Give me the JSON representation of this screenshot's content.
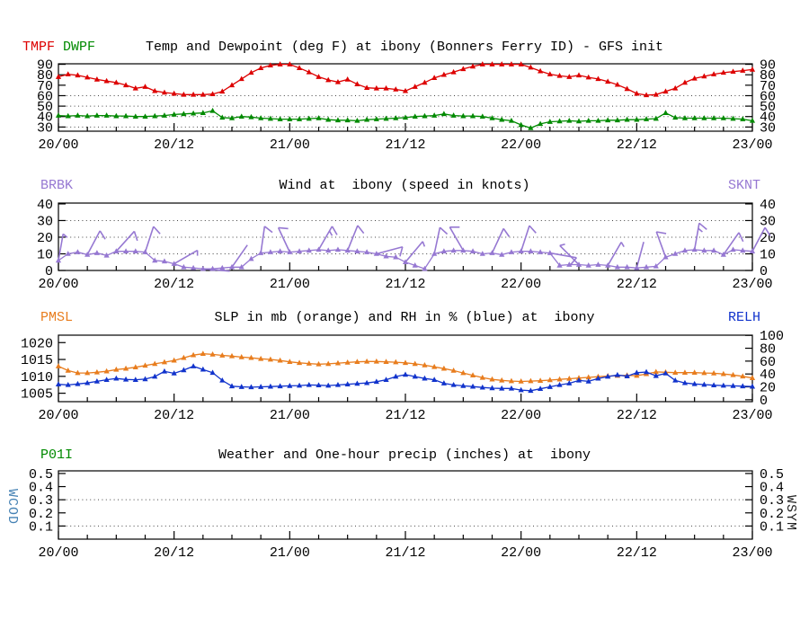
{
  "side_labels": {
    "left": {
      "text": "WCOD",
      "color": "#4682b4"
    },
    "right": {
      "text": "WSYM",
      "color": "#222222"
    }
  },
  "x_axis": {
    "tick_labels": [
      "20/00",
      "20/12",
      "21/00",
      "21/12",
      "22/00",
      "22/12",
      "23/00"
    ],
    "tick_hours": [
      0,
      12,
      24,
      36,
      48,
      60,
      72
    ],
    "minor_tick_every_h": 3,
    "x_range_hours": [
      0,
      72
    ],
    "x_step_hours": 1
  },
  "chart_data": [
    {
      "type": "line",
      "title": "Temp and Dewpoint (deg F) at ibony (Bonners Ferry ID) - GFS init",
      "left_params": [
        {
          "label": "TMPF",
          "color": "#dd0000"
        },
        {
          "label": "DWPF",
          "color": "#008a00"
        }
      ],
      "right_params": [],
      "ylim": [
        26,
        90.5
      ],
      "yticks_left": [
        90,
        80,
        70,
        60,
        50,
        40,
        30
      ],
      "yticks_right": [
        90,
        80,
        70,
        60,
        50,
        40,
        30
      ],
      "grid_values": [
        60,
        50,
        40,
        30
      ],
      "series": [
        {
          "name": "TMPF",
          "color": "#dd0000",
          "values": [
            78,
            80.5,
            79.5,
            77.5,
            75.5,
            74,
            72.5,
            70,
            67,
            68.5,
            64.5,
            63,
            62,
            61,
            61,
            61,
            61.5,
            64,
            70,
            76,
            82,
            86.5,
            89,
            90,
            90,
            86.5,
            82.5,
            78,
            75,
            73,
            75.5,
            71,
            67.5,
            67,
            67,
            66,
            64.5,
            68.5,
            72.5,
            77,
            80,
            82.5,
            85.5,
            88,
            90,
            90,
            90,
            90,
            90,
            87,
            83.5,
            80.5,
            79,
            78,
            79.5,
            77.5,
            76,
            73.5,
            70.5,
            66.5,
            62,
            60.5,
            61,
            64,
            67,
            72.5,
            76.5,
            78.5,
            80.5,
            82,
            83,
            84,
            85
          ]
        },
        {
          "name": "DWPF",
          "color": "#008a00",
          "values": [
            41,
            40.5,
            41,
            40.5,
            41,
            41,
            40.5,
            40.5,
            40,
            40,
            40.5,
            41,
            42,
            42.5,
            43,
            43.5,
            45.5,
            39,
            38.5,
            40,
            39.5,
            38.5,
            38,
            37.5,
            37.5,
            37.5,
            38,
            38.5,
            37,
            36.5,
            36.5,
            36,
            37,
            37.5,
            38,
            38.5,
            39,
            40,
            40.5,
            41,
            42.5,
            41,
            40.5,
            40.5,
            40,
            38.5,
            37,
            36,
            32,
            29,
            33,
            35,
            35.5,
            36,
            35.5,
            36,
            36,
            36.5,
            36.5,
            37,
            37,
            37.5,
            38,
            43.5,
            39,
            38.5,
            38.5,
            38.5,
            38.5,
            38.5,
            38,
            37.5,
            36
          ]
        }
      ]
    },
    {
      "type": "line",
      "title": "Wind at  ibony (speed in knots)",
      "left_params": [
        {
          "label": "BRBK",
          "color": "#9678d2"
        }
      ],
      "right_params": [
        {
          "label": "SKNT",
          "color": "#9678d2"
        }
      ],
      "ylim": [
        0,
        40.5
      ],
      "yticks_left": [
        40,
        30,
        20,
        10,
        0
      ],
      "yticks_right": [
        40,
        30,
        20,
        10,
        0
      ],
      "grid_values": [
        30,
        20,
        10
      ],
      "barb_interval_h": 3,
      "barb_angles_deg": [
        10,
        28,
        42,
        18,
        60,
        95,
        35,
        8,
        -25,
        30,
        22,
        75,
        40,
        12,
        -30,
        25,
        18,
        100,
        -45,
        30,
        15,
        -20,
        10,
        35,
        28
      ],
      "series": [
        {
          "name": "SKNT",
          "color": "#9678d2",
          "values": [
            6,
            10,
            11,
            9.5,
            10.5,
            9,
            11.5,
            11.5,
            11.5,
            11,
            6,
            5.5,
            4,
            2,
            1.5,
            1,
            1,
            1.5,
            2,
            2,
            7,
            10.5,
            11,
            11.5,
            11,
            11.5,
            12,
            12.5,
            12,
            12.5,
            12,
            11.5,
            11,
            10,
            8.5,
            8,
            5,
            3,
            1,
            10,
            11.5,
            12,
            12,
            11.5,
            10,
            10.5,
            9.5,
            11,
            11.5,
            11.5,
            11,
            10.5,
            3,
            3.5,
            3.5,
            3,
            3.5,
            3,
            2,
            2,
            1.5,
            2,
            2.5,
            8,
            10,
            12,
            12.5,
            12,
            12,
            9.5,
            12.5,
            12,
            11.5
          ]
        }
      ]
    },
    {
      "type": "line",
      "title": "SLP in mb (orange) and RH in % (blue) at  ibony",
      "left_params": [
        {
          "label": "PMSL",
          "color": "#e87d1e"
        }
      ],
      "right_params": [
        {
          "label": "RELH",
          "color": "#1133cc"
        }
      ],
      "ylim_left": [
        1002.5,
        1022.2
      ],
      "yticks_left": [
        1020,
        1015,
        1010,
        1005
      ],
      "ylim_right": [
        -3,
        100.3
      ],
      "yticks_right": [
        100,
        80,
        60,
        40,
        20,
        0
      ],
      "grid_values": [],
      "series": [
        {
          "name": "PMSL",
          "axis": "left",
          "color": "#e87d1e",
          "values": [
            1013,
            1011.7,
            1011,
            1011,
            1011.2,
            1011.5,
            1012,
            1012.3,
            1012.7,
            1013.2,
            1013.7,
            1014.2,
            1014.7,
            1015.5,
            1016.3,
            1016.7,
            1016.5,
            1016.2,
            1016,
            1015.7,
            1015.5,
            1015.2,
            1015,
            1014.7,
            1014.3,
            1014,
            1013.8,
            1013.6,
            1013.7,
            1013.9,
            1014.1,
            1014.3,
            1014.4,
            1014.4,
            1014.3,
            1014.2,
            1014,
            1013.7,
            1013.3,
            1012.8,
            1012.3,
            1011.7,
            1011,
            1010.3,
            1009.6,
            1009.1,
            1008.8,
            1008.6,
            1008.5,
            1008.6,
            1008.7,
            1008.9,
            1009.1,
            1009.3,
            1009.5,
            1009.7,
            1009.9,
            1010.1,
            1010.2,
            1010.3,
            1010.2,
            1010.7,
            1011.3,
            1011.2,
            1011.1,
            1011.1,
            1011.1,
            1011,
            1010.9,
            1010.7,
            1010.4,
            1010,
            1009.5
          ]
        },
        {
          "name": "RELH",
          "axis": "right",
          "color": "#1133cc",
          "values": [
            24,
            23,
            24.5,
            26,
            28.5,
            31,
            33,
            31.5,
            31,
            32,
            36,
            44,
            41,
            46,
            52,
            47,
            42,
            30,
            21,
            20,
            19.5,
            20,
            20.5,
            21,
            21.5,
            22,
            23,
            22.5,
            22,
            23,
            24,
            25,
            26,
            28,
            31,
            36,
            39,
            36,
            33,
            31,
            25.5,
            23,
            21.5,
            20.5,
            19,
            18,
            17.5,
            17.5,
            15,
            14,
            17,
            20,
            23,
            25.5,
            30,
            28.5,
            33,
            36,
            38.5,
            36.5,
            42,
            43,
            37,
            41,
            30,
            26,
            24.5,
            23.5,
            22.5,
            22,
            21.5,
            21,
            20.5
          ]
        }
      ]
    },
    {
      "type": "line",
      "title": "Weather and One-hour precip (inches) at  ibony",
      "left_params": [
        {
          "label": "P01I",
          "color": "#008a00"
        }
      ],
      "right_params": [],
      "ylim": [
        0.0,
        0.52
      ],
      "yticks_left": [
        0.5,
        0.4,
        0.3,
        0.2,
        0.1
      ],
      "yticks_right": [
        0.5,
        0.4,
        0.3,
        0.2,
        0.1
      ],
      "grid_values": [
        0.3,
        0.1
      ],
      "series": []
    }
  ]
}
